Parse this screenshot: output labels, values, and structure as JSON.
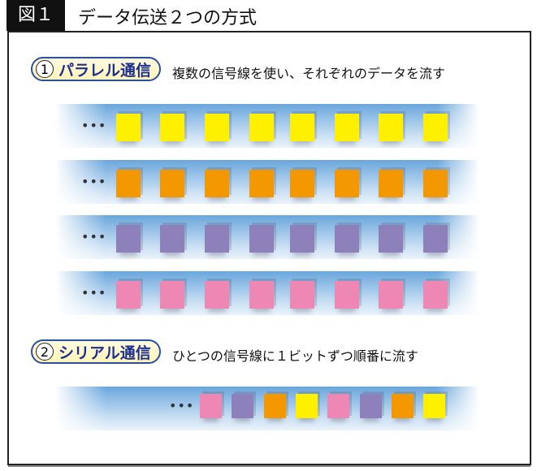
{
  "figure": {
    "label": "図１",
    "title": "データ伝送２つの方式"
  },
  "parallel": {
    "number": "1",
    "label": "パラレル通信",
    "description": "複数の信号線を使い、それぞれのデータを流す",
    "ellipsis": "•••",
    "rows": [
      "#fff000",
      "#f39800",
      "#8e80bb",
      "#ee87b4"
    ],
    "cubes_per_row": 8
  },
  "serial": {
    "number": "2",
    "label": "シリアル通信",
    "description": "ひとつの信号線に１ビットずつ順番に流す",
    "ellipsis": "•••",
    "cubes": [
      "#ee87b4",
      "#8e80bb",
      "#f39800",
      "#fff000",
      "#ee87b4",
      "#8e80bb",
      "#f39800",
      "#fff000"
    ]
  }
}
